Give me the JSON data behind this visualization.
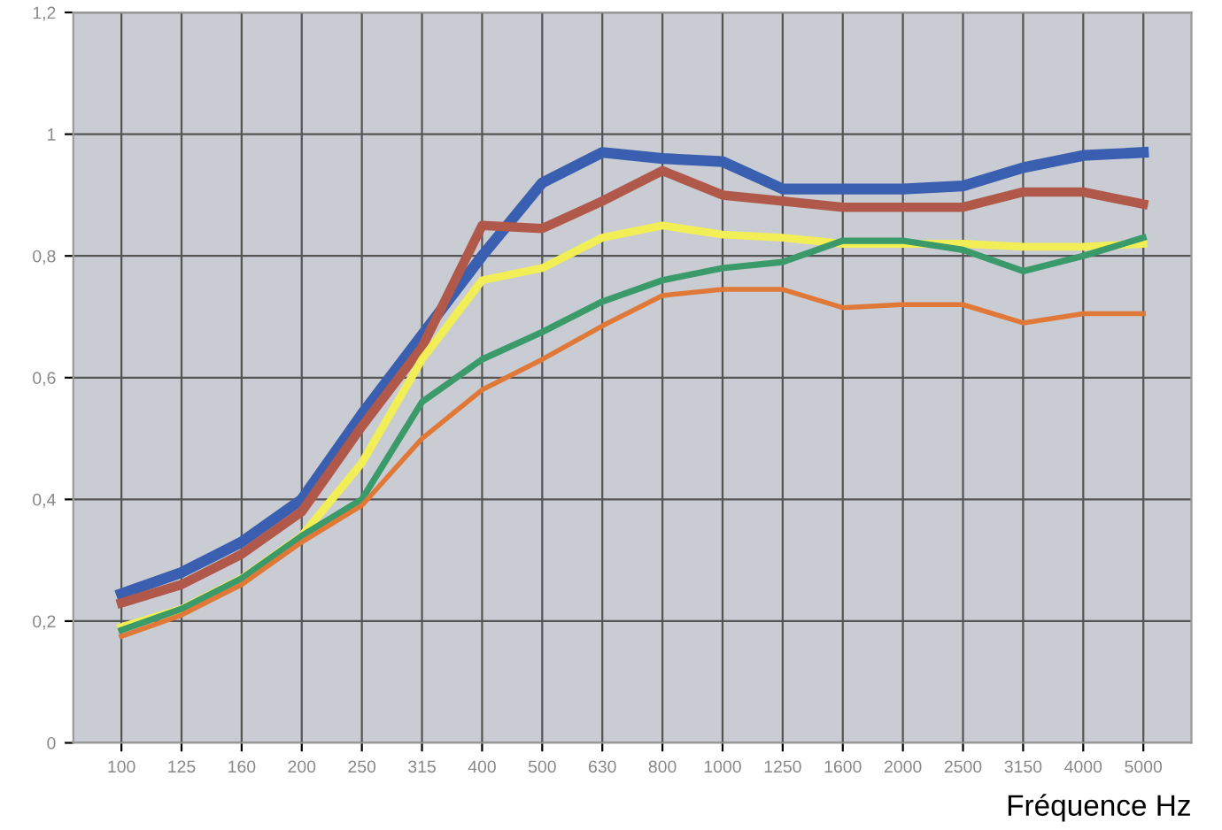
{
  "chart_data": {
    "type": "line",
    "xlabel": "Fréquence Hz",
    "categories": [
      "100",
      "125",
      "160",
      "200",
      "250",
      "315",
      "400",
      "500",
      "630",
      "800",
      "1000",
      "1250",
      "1600",
      "2000",
      "2500",
      "3150",
      "4000",
      "5000"
    ],
    "series": [
      {
        "color": "#3b5fb0",
        "values": [
          0.245,
          0.28,
          0.33,
          0.4,
          0.54,
          0.67,
          0.8,
          0.92,
          0.97,
          0.96,
          0.955,
          0.91,
          0.91,
          0.91,
          0.915,
          0.945,
          0.965,
          0.97
        ]
      },
      {
        "color": "#b0584a",
        "values": [
          0.23,
          0.26,
          0.31,
          0.38,
          0.52,
          0.65,
          0.85,
          0.845,
          0.89,
          0.94,
          0.9,
          0.89,
          0.88,
          0.88,
          0.88,
          0.905,
          0.905,
          0.885
        ]
      },
      {
        "color": "#f2ee55",
        "values": [
          0.19,
          0.22,
          0.27,
          0.34,
          0.46,
          0.63,
          0.76,
          0.78,
          0.83,
          0.85,
          0.835,
          0.83,
          0.82,
          0.82,
          0.82,
          0.815,
          0.815,
          0.82
        ]
      },
      {
        "color": "#3a9a6a",
        "values": [
          0.185,
          0.22,
          0.27,
          0.34,
          0.4,
          0.56,
          0.63,
          0.675,
          0.725,
          0.76,
          0.78,
          0.79,
          0.825,
          0.825,
          0.81,
          0.775,
          0.8,
          0.83
        ]
      },
      {
        "color": "#e07838",
        "values": [
          0.175,
          0.21,
          0.26,
          0.33,
          0.39,
          0.5,
          0.58,
          0.63,
          0.685,
          0.735,
          0.745,
          0.745,
          0.715,
          0.72,
          0.72,
          0.69,
          0.705,
          0.705
        ]
      }
    ],
    "ylim": [
      0,
      1.2
    ],
    "yticks": [
      0,
      {
        "value": 0.2,
        "label": "0,2"
      },
      {
        "value": 0.4,
        "label": "0,4"
      },
      {
        "value": 0.6,
        "label": "0,6"
      },
      {
        "value": 0.8,
        "label": "0,8"
      },
      1,
      {
        "value": 1.2,
        "label": "1,2"
      }
    ],
    "grid": true,
    "legend": false,
    "marker": "none",
    "line_style": "solid"
  }
}
